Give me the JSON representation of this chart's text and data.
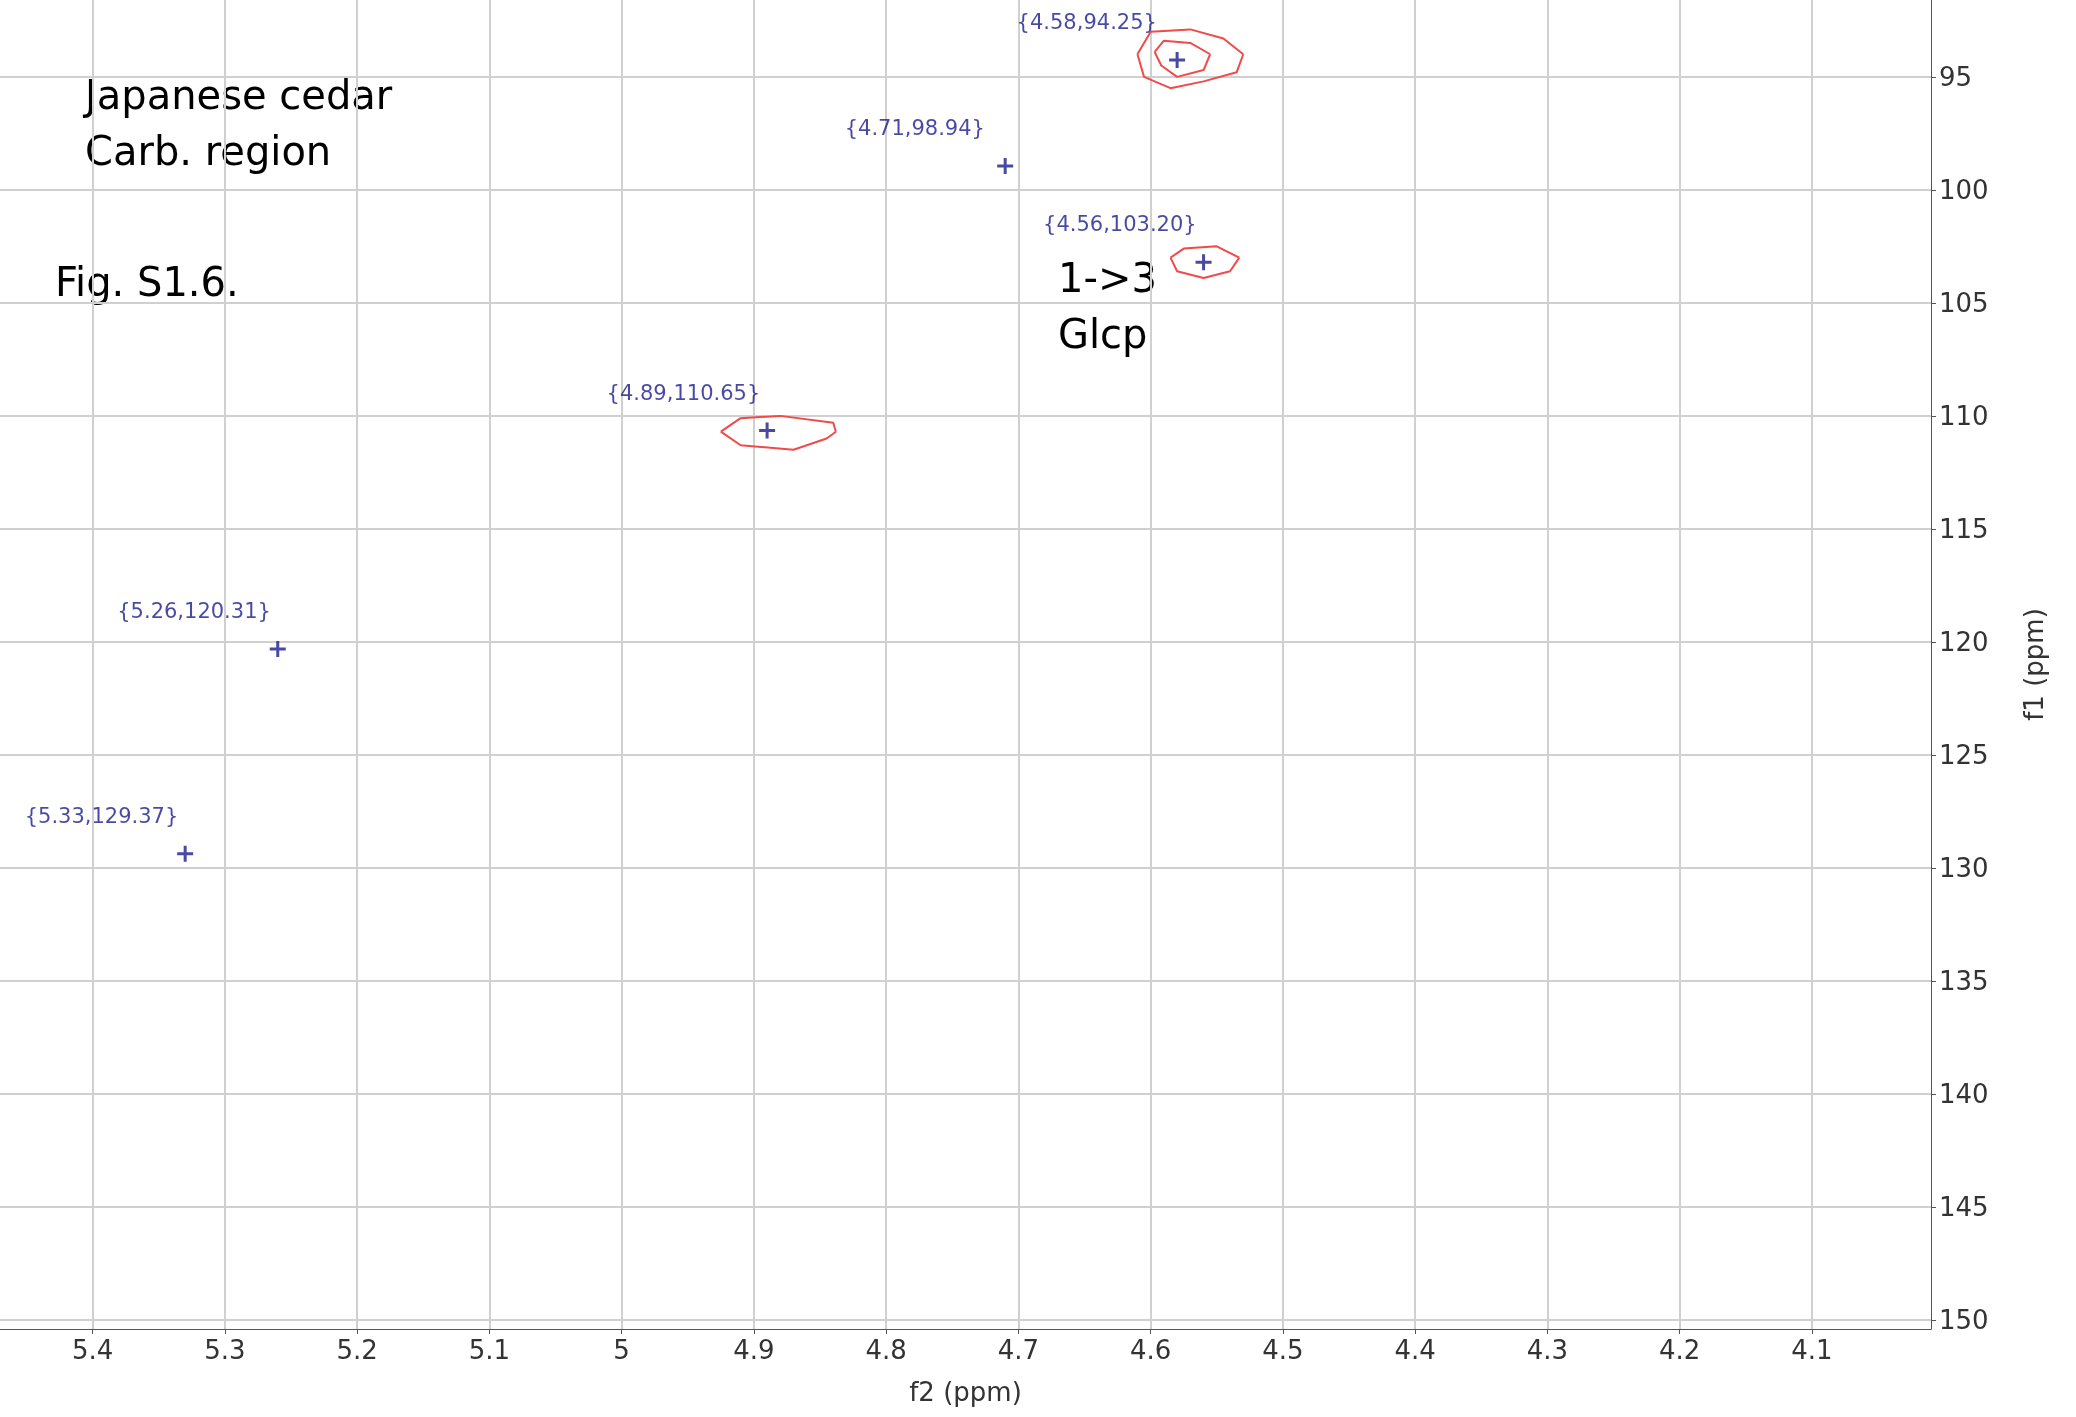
{
  "chart_data": {
    "type": "scatter",
    "xlabel": "f2 (ppm)",
    "ylabel": "f1 (ppm)",
    "annotations": [
      "Japanese cedar",
      "Carb. region",
      "Fig. S1.6.",
      "1->3",
      "Glcp"
    ],
    "xlim": [
      5.47,
      4.01
    ],
    "ylim": [
      150.4,
      91.6
    ],
    "xticks": [
      5.4,
      5.3,
      5.2,
      5.1,
      5.0,
      4.9,
      4.8,
      4.7,
      4.6,
      4.5,
      4.4,
      4.3,
      4.2,
      4.1
    ],
    "yticks": [
      95,
      100,
      105,
      110,
      115,
      120,
      125,
      130,
      135,
      140,
      145,
      150
    ],
    "grid": true,
    "series": [
      {
        "type": "line",
        "color": "#f04a4a",
        "marker": "none",
        "x": [
          4.61,
          4.6,
          4.57,
          4.545,
          4.53
        ],
        "values": [
          94.0,
          93.0,
          92.9,
          93.3,
          94.0
        ]
      },
      {
        "type": "line",
        "color": "#f04a4a",
        "marker": "none",
        "x": [
          4.61,
          4.605,
          4.585,
          4.56,
          4.535,
          4.53
        ],
        "values": [
          94.0,
          95.0,
          95.5,
          95.2,
          94.8,
          94.0
        ]
      },
      {
        "type": "line",
        "color": "#f04a4a",
        "marker": "none",
        "x": [
          4.597,
          4.59,
          4.57,
          4.555
        ],
        "values": [
          93.9,
          93.4,
          93.5,
          94.0
        ]
      },
      {
        "type": "line",
        "color": "#f04a4a",
        "marker": "none",
        "x": [
          4.597,
          4.592,
          4.58,
          4.56,
          4.555
        ],
        "values": [
          93.9,
          94.5,
          95.0,
          94.7,
          94.0
        ]
      },
      {
        "type": "line",
        "color": "#f04a4a",
        "marker": "none",
        "x": [
          4.585,
          4.575,
          4.55,
          4.533
        ],
        "values": [
          103.0,
          102.6,
          102.5,
          103.0
        ]
      },
      {
        "type": "line",
        "color": "#f04a4a",
        "marker": "none",
        "x": [
          4.585,
          4.58,
          4.56,
          4.54,
          4.533
        ],
        "values": [
          103.0,
          103.6,
          103.9,
          103.6,
          103.0
        ]
      },
      {
        "type": "line",
        "color": "#f04a4a",
        "marker": "none",
        "x": [
          4.925,
          4.91,
          4.88,
          4.84,
          4.838
        ],
        "values": [
          110.7,
          110.1,
          110.0,
          110.3,
          110.7
        ]
      },
      {
        "type": "line",
        "color": "#f04a4a",
        "marker": "none",
        "x": [
          4.925,
          4.91,
          4.87,
          4.845,
          4.838
        ],
        "values": [
          110.7,
          111.3,
          111.5,
          111.0,
          110.7
        ]
      },
      {
        "color": "#1c1c8c",
        "marker": "cross",
        "x": [
          4.58,
          4.71,
          4.56,
          4.89,
          5.26,
          5.33
        ],
        "values": [
          94.25,
          98.94,
          103.2,
          110.65,
          120.31,
          129.37
        ],
        "value_labels": [
          "{4.58,94.25}",
          "{4.71,98.94}",
          "{4.56,103.20}",
          "{4.89,110.65}",
          "{5.26,120.31}",
          "{5.33,129.37}"
        ]
      }
    ]
  }
}
